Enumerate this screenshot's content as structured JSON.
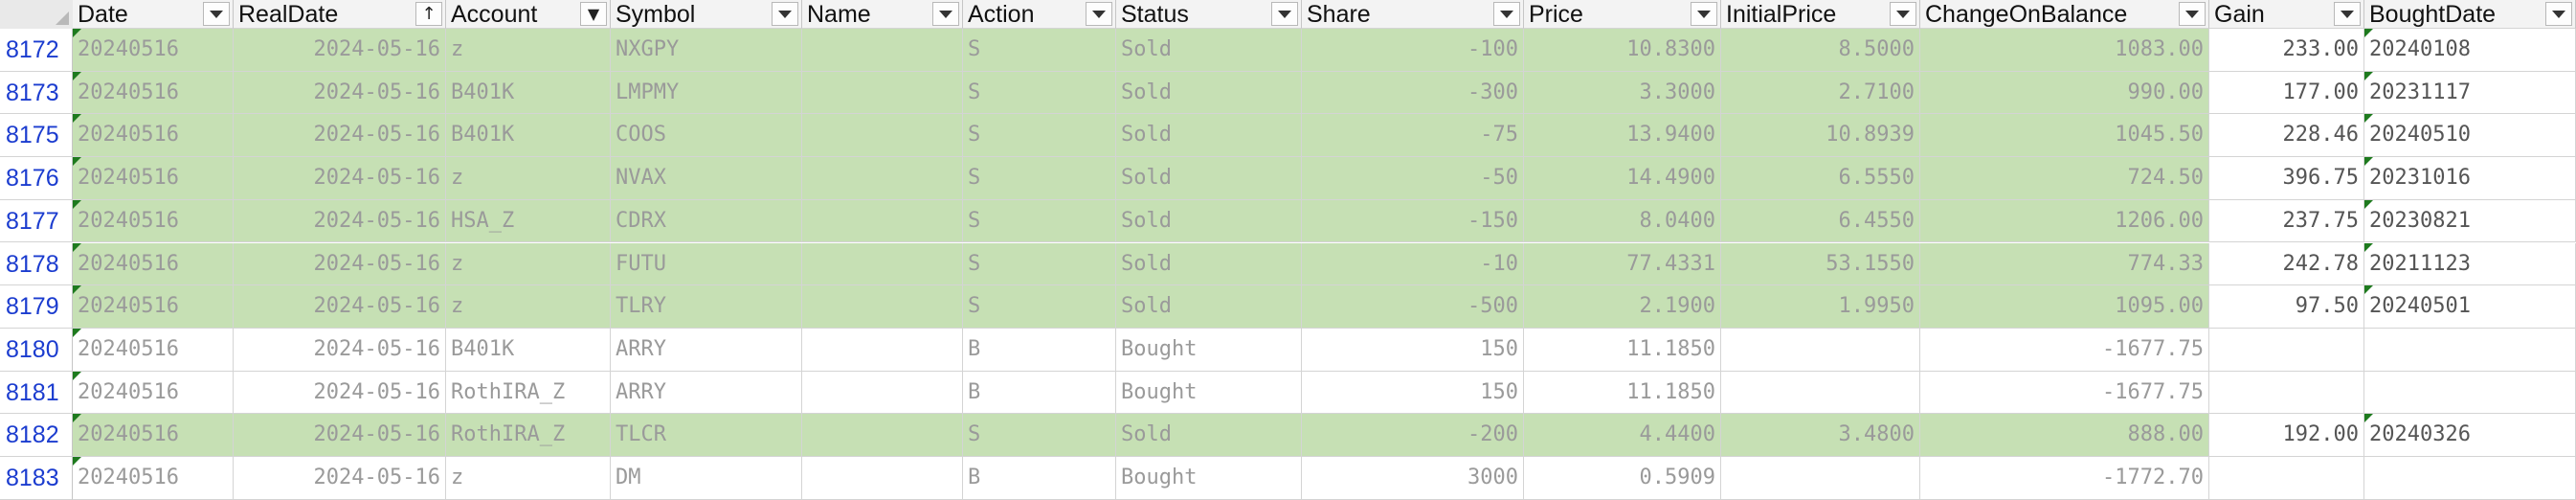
{
  "sheet": {
    "columns": [
      {
        "key": "date",
        "label": "Date",
        "glyph": ""
      },
      {
        "key": "realdate",
        "label": "RealDate",
        "glyph": "sort"
      },
      {
        "key": "account",
        "label": "Account",
        "glyph": "filter"
      },
      {
        "key": "symbol",
        "label": "Symbol",
        "glyph": ""
      },
      {
        "key": "name",
        "label": "Name",
        "glyph": ""
      },
      {
        "key": "action",
        "label": "Action",
        "glyph": ""
      },
      {
        "key": "status",
        "label": "Status",
        "glyph": ""
      },
      {
        "key": "share",
        "label": "Share",
        "glyph": ""
      },
      {
        "key": "price",
        "label": "Price",
        "glyph": ""
      },
      {
        "key": "initialprice",
        "label": "InitialPrice",
        "glyph": ""
      },
      {
        "key": "change",
        "label": "ChangeOnBalance",
        "glyph": ""
      },
      {
        "key": "gain",
        "label": "Gain",
        "glyph": ""
      },
      {
        "key": "boughtdate",
        "label": "BoughtDate",
        "glyph": ""
      }
    ],
    "rows": [
      {
        "num": "8172",
        "fill": "green",
        "date": "20240516",
        "realdate": "2024-05-16",
        "account": "z",
        "symbol": "NXGPY",
        "name": "",
        "action": "S",
        "status": "Sold",
        "share": "-100",
        "price": "10.8300",
        "initialprice": "8.5000",
        "change": "1083.00",
        "gain": "233.00",
        "boughtdate": "20240108"
      },
      {
        "num": "8173",
        "fill": "green",
        "date": "20240516",
        "realdate": "2024-05-16",
        "account": "B401K",
        "symbol": "LMPMY",
        "name": "",
        "action": "S",
        "status": "Sold",
        "share": "-300",
        "price": "3.3000",
        "initialprice": "2.7100",
        "change": "990.00",
        "gain": "177.00",
        "boughtdate": "20231117"
      },
      {
        "num": "8175",
        "fill": "green",
        "date": "20240516",
        "realdate": "2024-05-16",
        "account": "B401K",
        "symbol": "COOS",
        "name": "",
        "action": "S",
        "status": "Sold",
        "share": "-75",
        "price": "13.9400",
        "initialprice": "10.8939",
        "change": "1045.50",
        "gain": "228.46",
        "boughtdate": "20240510"
      },
      {
        "num": "8176",
        "fill": "green",
        "date": "20240516",
        "realdate": "2024-05-16",
        "account": "z",
        "symbol": "NVAX",
        "name": "",
        "action": "S",
        "status": "Sold",
        "share": "-50",
        "price": "14.4900",
        "initialprice": "6.5550",
        "change": "724.50",
        "gain": "396.75",
        "boughtdate": "20231016"
      },
      {
        "num": "8177",
        "fill": "green",
        "date": "20240516",
        "realdate": "2024-05-16",
        "account": "HSA_Z",
        "symbol": "CDRX",
        "name": "",
        "action": "S",
        "status": "Sold",
        "share": "-150",
        "price": "8.0400",
        "initialprice": "6.4550",
        "change": "1206.00",
        "gain": "237.75",
        "boughtdate": "20230821"
      },
      {
        "num": "8178",
        "fill": "green",
        "date": "20240516",
        "realdate": "2024-05-16",
        "account": "z",
        "symbol": "FUTU",
        "name": "",
        "action": "S",
        "status": "Sold",
        "share": "-10",
        "price": "77.4331",
        "initialprice": "53.1550",
        "change": "774.33",
        "gain": "242.78",
        "boughtdate": "20211123"
      },
      {
        "num": "8179",
        "fill": "green",
        "date": "20240516",
        "realdate": "2024-05-16",
        "account": "z",
        "symbol": "TLRY",
        "name": "",
        "action": "S",
        "status": "Sold",
        "share": "-500",
        "price": "2.1900",
        "initialprice": "1.9950",
        "change": "1095.00",
        "gain": "97.50",
        "boughtdate": "20240501"
      },
      {
        "num": "8180",
        "fill": "white",
        "date": "20240516",
        "realdate": "2024-05-16",
        "account": "B401K",
        "symbol": "ARRY",
        "name": "",
        "action": "B",
        "status": "Bought",
        "share": "150",
        "price": "11.1850",
        "initialprice": "",
        "change": "-1677.75",
        "gain": "",
        "boughtdate": ""
      },
      {
        "num": "8181",
        "fill": "white",
        "date": "20240516",
        "realdate": "2024-05-16",
        "account": "RothIRA_Z",
        "symbol": "ARRY",
        "name": "",
        "action": "B",
        "status": "Bought",
        "share": "150",
        "price": "11.1850",
        "initialprice": "",
        "change": "-1677.75",
        "gain": "",
        "boughtdate": ""
      },
      {
        "num": "8182",
        "fill": "green",
        "date": "20240516",
        "realdate": "2024-05-16",
        "account": "RothIRA_Z",
        "symbol": "TLCR",
        "name": "",
        "action": "S",
        "status": "Sold",
        "share": "-200",
        "price": "4.4400",
        "initialprice": "3.4800",
        "change": "888.00",
        "gain": "192.00",
        "boughtdate": "20240326"
      },
      {
        "num": "8183",
        "fill": "white",
        "date": "20240516",
        "realdate": "2024-05-16",
        "account": "z",
        "symbol": "DM",
        "name": "",
        "action": "B",
        "status": "Bought",
        "share": "3000",
        "price": "0.5909",
        "initialprice": "",
        "change": "-1772.70",
        "gain": "",
        "boughtdate": ""
      }
    ]
  },
  "colors": {
    "sold_fill": "#c6e0b4",
    "row_number": "#1b3ccf",
    "cell_text": "#9a9a9a",
    "error_marker": "#1e7a1e"
  }
}
